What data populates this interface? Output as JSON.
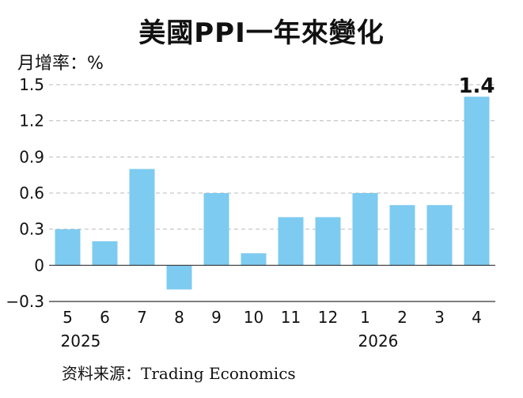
{
  "title": "美國PPI一年來變化",
  "unit_label": "月增率：%",
  "source": "资料来源：Trading Economics",
  "colors": {
    "bar": "#7dcbf0",
    "grid": "#bbbbbb",
    "axis": "#333333"
  },
  "chart_data": {
    "type": "bar",
    "title": "美國PPI一年來變化",
    "ylabel": "月增率：%",
    "xlabel": "",
    "categories": [
      "5",
      "6",
      "7",
      "8",
      "9",
      "10",
      "11",
      "12",
      "1",
      "2",
      "3",
      "4"
    ],
    "years": [
      {
        "label": "2025",
        "at_category": "5"
      },
      {
        "label": "2026",
        "at_category": "1"
      }
    ],
    "values": [
      0.3,
      0.2,
      0.8,
      -0.2,
      0.6,
      0.1,
      0.4,
      0.4,
      0.6,
      0.5,
      0.5,
      1.4
    ],
    "yticks": [
      "1.5",
      "1.2",
      "0.9",
      "0.6",
      "0.3",
      "0",
      "−0.3"
    ],
    "ylim": [
      -0.3,
      1.5
    ],
    "data_labels": [
      {
        "category": "4",
        "text": "1.4"
      }
    ],
    "grid": true
  }
}
